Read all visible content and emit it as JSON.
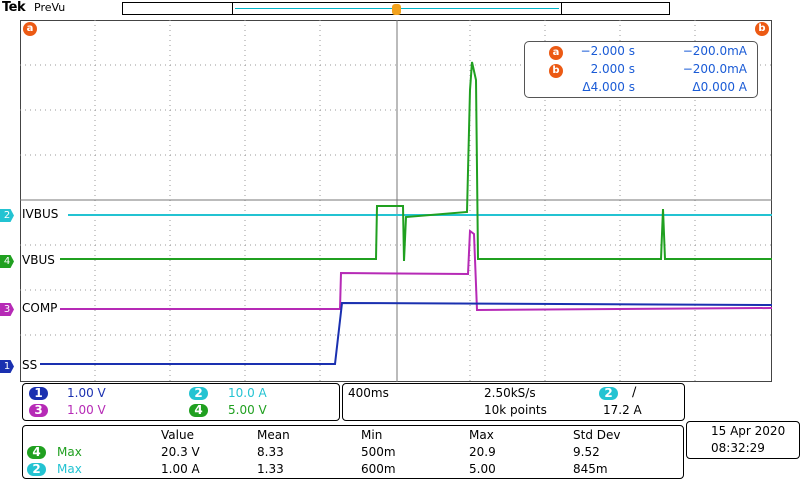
{
  "header": {
    "brand": "Tek",
    "mode": "PreVu"
  },
  "cursors": {
    "a_badge": "a",
    "b_badge": "b",
    "rows": [
      {
        "badge": "a",
        "time": "−2.000 s",
        "value": "−200.0mA"
      },
      {
        "badge": "b",
        "time": "2.000 s",
        "value": "−200.0mA"
      },
      {
        "badge": "",
        "time": "Δ4.000 s",
        "value": "Δ0.000 A"
      }
    ]
  },
  "channels": [
    {
      "num": "2",
      "name": "IVBUS",
      "color": "#23c3d2"
    },
    {
      "num": "4",
      "name": "VBUS",
      "color": "#20a020"
    },
    {
      "num": "3",
      "name": "COMP",
      "color": "#b62ab6"
    },
    {
      "num": "1",
      "name": "SS",
      "color": "#1a30b0"
    }
  ],
  "vertical": {
    "ch1": {
      "num": "1",
      "scale": "1.00 V"
    },
    "ch2": {
      "num": "2",
      "scale": "10.0 A"
    },
    "ch3": {
      "num": "3",
      "scale": "1.00 V"
    },
    "ch4": {
      "num": "4",
      "scale": "5.00 V"
    }
  },
  "horizontal": {
    "timebase": "400ms",
    "sample_rate": "2.50kS/s",
    "record_length": "10k points",
    "trigger_source": "2",
    "trigger_slope": "∕",
    "trigger_level": "17.2 A"
  },
  "measurements": {
    "headers": [
      "Value",
      "Mean",
      "Min",
      "Max",
      "Std Dev"
    ],
    "rows": [
      {
        "ch": "4",
        "type": "Max",
        "color": "#20a020",
        "value": "20.3 V",
        "mean": "8.33",
        "min": "500m",
        "max": "20.9",
        "std": "9.52"
      },
      {
        "ch": "2",
        "type": "Max",
        "color": "#23c3d2",
        "value": "1.00 A",
        "mean": "1.33",
        "min": "600m",
        "max": "5.00",
        "std": "845m"
      }
    ]
  },
  "datetime": {
    "date": "15 Apr  2020",
    "time": "08:32:29"
  }
}
